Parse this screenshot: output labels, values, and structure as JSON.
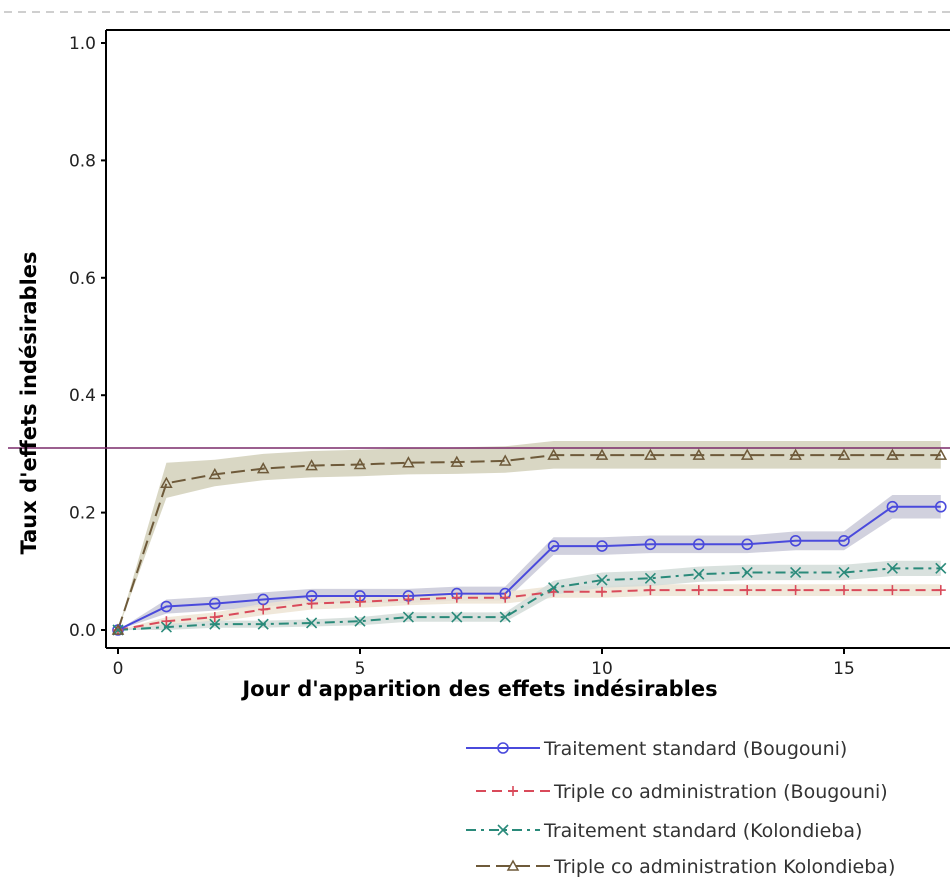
{
  "chart_data": {
    "type": "line",
    "title": "",
    "xlabel": "Jour d'apparition des effets indésirables",
    "ylabel": "Taux d'effets indésirables",
    "xlim": [
      -0.5,
      17
    ],
    "ylim": [
      -0.03,
      1.03
    ],
    "x_ticks": [
      0,
      5,
      10,
      15
    ],
    "y_ticks": [
      0.0,
      0.2,
      0.4,
      0.6,
      0.8,
      1.0
    ],
    "x_tick_labels": [
      "0",
      "5",
      "10",
      "15"
    ],
    "y_tick_labels": [
      "0.0",
      "0.2",
      "0.4",
      "0.6",
      "0.8",
      "1.0"
    ],
    "legend_position": "bottom-right",
    "x": [
      0,
      1,
      2,
      3,
      4,
      5,
      6,
      7,
      8,
      9,
      10,
      11,
      12,
      13,
      14,
      15,
      16,
      17
    ],
    "series": [
      {
        "name": "Traitement standard (Bougouni)",
        "color": "#4a4adc",
        "band_color": "#c9c9d8",
        "marker": "circle",
        "dash": "",
        "values": [
          0,
          0.04,
          0.045,
          0.052,
          0.058,
          0.058,
          0.058,
          0.062,
          0.062,
          0.143,
          0.143,
          0.146,
          0.146,
          0.146,
          0.152,
          0.152,
          0.21,
          0.21
        ],
        "lower": [
          0,
          0.028,
          0.033,
          0.04,
          0.046,
          0.046,
          0.046,
          0.05,
          0.05,
          0.128,
          0.128,
          0.131,
          0.131,
          0.131,
          0.136,
          0.136,
          0.19,
          0.19
        ],
        "upper": [
          0,
          0.052,
          0.057,
          0.064,
          0.07,
          0.07,
          0.07,
          0.074,
          0.074,
          0.158,
          0.158,
          0.161,
          0.161,
          0.161,
          0.168,
          0.168,
          0.23,
          0.23
        ]
      },
      {
        "name": "Triple co administration (Bougouni)",
        "color": "#d94a5a",
        "band_color": "#ede4d4",
        "marker": "plus",
        "dash": "10,6",
        "values": [
          0,
          0.015,
          0.022,
          0.035,
          0.045,
          0.048,
          0.052,
          0.055,
          0.055,
          0.065,
          0.065,
          0.068,
          0.068,
          0.068,
          0.068,
          0.068,
          0.068,
          0.068
        ],
        "lower": [
          0,
          0.008,
          0.014,
          0.025,
          0.035,
          0.038,
          0.042,
          0.045,
          0.045,
          0.055,
          0.055,
          0.058,
          0.058,
          0.058,
          0.058,
          0.058,
          0.058,
          0.058
        ],
        "upper": [
          0,
          0.022,
          0.03,
          0.045,
          0.055,
          0.058,
          0.062,
          0.065,
          0.065,
          0.075,
          0.075,
          0.078,
          0.078,
          0.078,
          0.078,
          0.078,
          0.078,
          0.078
        ]
      },
      {
        "name": "Traitement standard (Kolondieba)",
        "color": "#2a8a7a",
        "band_color": "#d2dcd8",
        "marker": "x",
        "dash": "10,5,3,5",
        "values": [
          0,
          0.005,
          0.01,
          0.01,
          0.012,
          0.015,
          0.022,
          0.022,
          0.022,
          0.072,
          0.085,
          0.088,
          0.095,
          0.098,
          0.098,
          0.098,
          0.105,
          0.105
        ],
        "lower": [
          0,
          0.0,
          0.004,
          0.004,
          0.006,
          0.008,
          0.014,
          0.014,
          0.014,
          0.06,
          0.072,
          0.075,
          0.082,
          0.085,
          0.085,
          0.085,
          0.092,
          0.092
        ],
        "upper": [
          0,
          0.01,
          0.016,
          0.016,
          0.018,
          0.022,
          0.03,
          0.03,
          0.03,
          0.084,
          0.098,
          0.101,
          0.108,
          0.111,
          0.111,
          0.111,
          0.118,
          0.118
        ]
      },
      {
        "name": "Triple co administration Kolondieba)",
        "color": "#6e5a3a",
        "band_color": "#d2d0ba",
        "marker": "triangle",
        "dash": "14,6",
        "values": [
          0,
          0.25,
          0.265,
          0.275,
          0.28,
          0.282,
          0.285,
          0.286,
          0.288,
          0.298,
          0.298,
          0.298,
          0.298,
          0.298,
          0.298,
          0.298,
          0.298,
          0.298
        ],
        "lower": [
          0,
          0.225,
          0.245,
          0.255,
          0.26,
          0.262,
          0.265,
          0.266,
          0.268,
          0.275,
          0.275,
          0.275,
          0.275,
          0.275,
          0.275,
          0.275,
          0.275,
          0.275
        ],
        "upper": [
          0,
          0.285,
          0.29,
          0.3,
          0.305,
          0.307,
          0.31,
          0.311,
          0.313,
          0.322,
          0.322,
          0.322,
          0.322,
          0.322,
          0.322,
          0.322,
          0.322,
          0.322
        ]
      }
    ],
    "reference_line": {
      "y": 0.31,
      "color": "#7a2a6a"
    }
  },
  "colors": {
    "axis": "#000000",
    "frame_dash": "#cfcfcf"
  }
}
